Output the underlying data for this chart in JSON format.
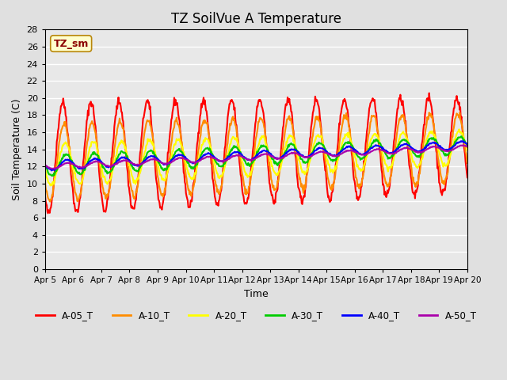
{
  "title": "TZ SoilVue A Temperature",
  "xlabel": "Time",
  "ylabel": "Soil Temperature (C)",
  "ylim": [
    0,
    28
  ],
  "yticks": [
    0,
    2,
    4,
    6,
    8,
    10,
    12,
    14,
    16,
    18,
    20,
    22,
    24,
    26,
    28
  ],
  "background_color": "#e0e0e0",
  "plot_bg_color": "#e8e8e8",
  "grid_color": "white",
  "annotation_text": "TZ_sm",
  "annotation_color": "#8b0000",
  "annotation_bg": "#ffffcc",
  "annotation_border": "#b8860b",
  "series_colors": [
    "#ff0000",
    "#ff8c00",
    "#ffff00",
    "#00cc00",
    "#0000ff",
    "#aa00aa"
  ],
  "series_lw": [
    1.5,
    1.5,
    1.5,
    1.5,
    1.5,
    1.5
  ],
  "legend_labels": [
    "A-05_T",
    "A-10_T",
    "A-20_T",
    "A-30_T",
    "A-40_T",
    "A-50_T"
  ],
  "xtick_labels": [
    "Apr 5",
    "Apr 6",
    "Apr 7",
    "Apr 8",
    "Apr 9",
    "Apr 10",
    "Apr 11",
    "Apr 12",
    "Apr 13",
    "Apr 14",
    "Apr 15",
    "Apr 16",
    "Apr 17",
    "Apr 18",
    "Apr 19",
    "Apr 20"
  ],
  "n_days": 15,
  "pts_per_day": 48
}
